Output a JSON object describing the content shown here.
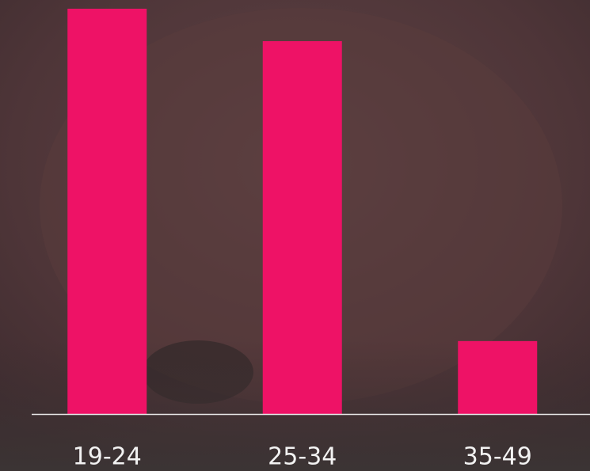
{
  "chart_data": {
    "type": "bar",
    "categories": [
      "19-24",
      "25-34",
      "35-49"
    ],
    "values": [
      100,
      92,
      18
    ],
    "color": "#ee1266",
    "ylim": [
      0,
      100
    ]
  }
}
